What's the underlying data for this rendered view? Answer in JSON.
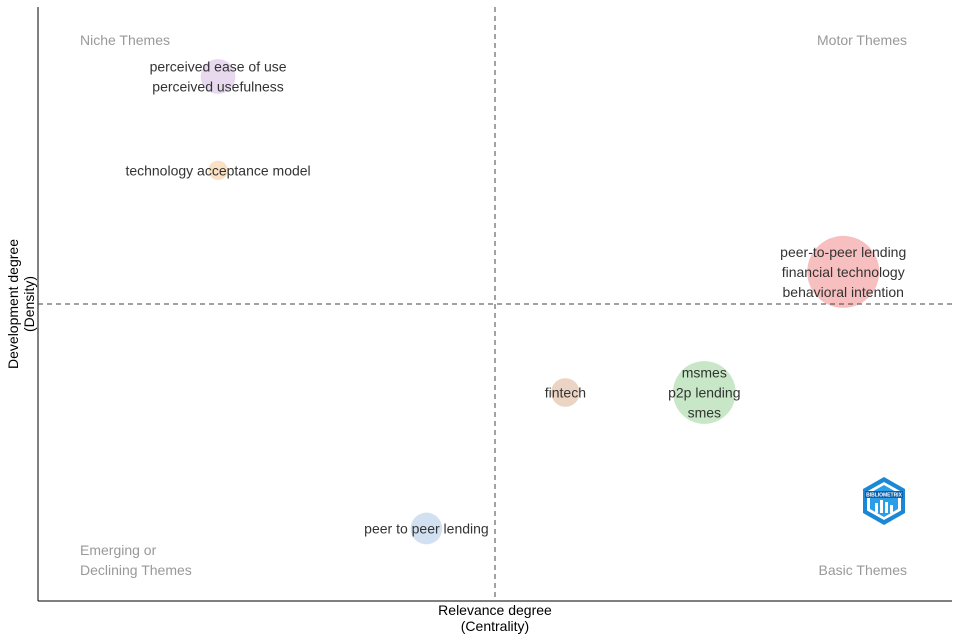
{
  "chart_data": {
    "type": "scatter",
    "title": "",
    "xlabel": "Relevance degree",
    "xlabel_sub": "(Centrality)",
    "ylabel": "Development degree",
    "ylabel_sub": "(Density)",
    "xlim": [
      0,
      1
    ],
    "ylim": [
      0,
      1
    ],
    "x_divider": 0.5,
    "y_divider": 0.5,
    "quadrants": {
      "top_left": "Niche Themes",
      "top_right": "Motor Themes",
      "bottom_left_line1": "Emerging or",
      "bottom_left_line2": "Declining Themes",
      "bottom_right": "Basic Themes"
    },
    "clusters": [
      {
        "name": "cluster-1",
        "x": 0.881,
        "y": 0.554,
        "size": 1.0,
        "color": "#f08080",
        "labels": [
          "peer-to-peer lending",
          "financial technology",
          "behavioral intention"
        ]
      },
      {
        "name": "cluster-2",
        "x": 0.729,
        "y": 0.351,
        "size": 0.85,
        "color": "#90d090",
        "labels": [
          "msmes",
          "p2p lending",
          "smes"
        ]
      },
      {
        "name": "cluster-3",
        "x": 0.577,
        "y": 0.351,
        "size": 0.3,
        "color": "#d9a98c",
        "labels": [
          "fintech"
        ]
      },
      {
        "name": "cluster-4",
        "x": 0.425,
        "y": 0.122,
        "size": 0.35,
        "color": "#a6c4e4",
        "labels": [
          "peer to peer lending"
        ]
      },
      {
        "name": "cluster-5",
        "x": 0.197,
        "y": 0.883,
        "size": 0.4,
        "color": "#d2b4e0",
        "labels": [
          "perceived ease of use",
          "perceived usefulness"
        ]
      },
      {
        "name": "cluster-6",
        "x": 0.197,
        "y": 0.725,
        "size": 0.15,
        "color": "#f5c48a",
        "labels": [
          "technology acceptance model"
        ]
      }
    ],
    "logo_text": "BIBLIOMETRIX"
  }
}
